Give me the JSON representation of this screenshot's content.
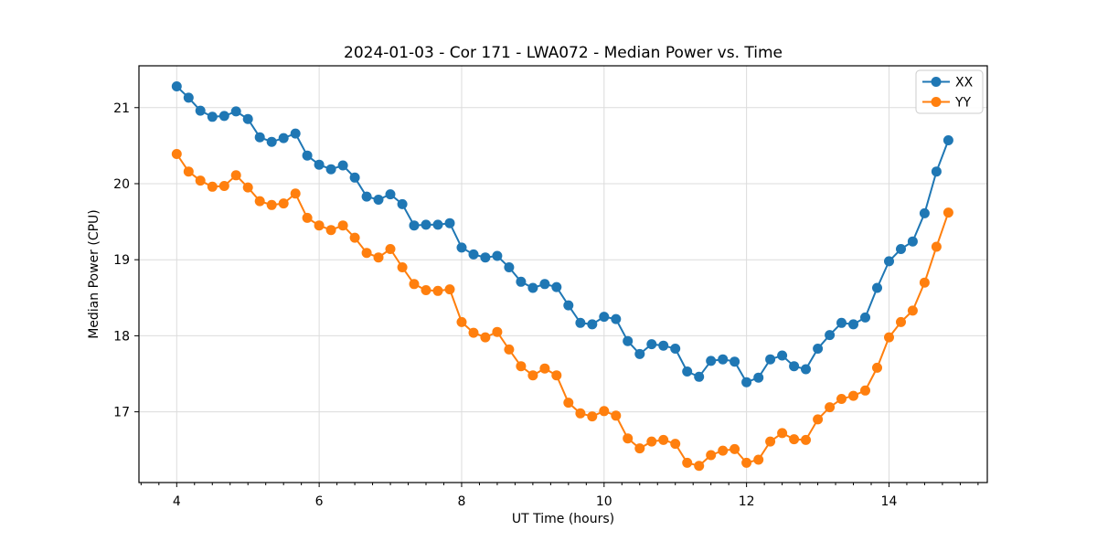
{
  "figure": {
    "background": "#ffffff",
    "plot_background": "#ffffff",
    "spine_color": "#000000",
    "grid_color": "#dcdcdc"
  },
  "chart_data": {
    "type": "line",
    "title": "2024-01-03 - Cor 171 - LWA072 - Median Power vs. Time",
    "xlabel": "UT Time (hours)",
    "ylabel": "Median Power (CPU)",
    "xlim": [
      3.47,
      15.38
    ],
    "ylim": [
      16.07,
      21.55
    ],
    "x_ticks": [
      4,
      6,
      8,
      10,
      12,
      14
    ],
    "x_minor_tick_step": 0.25,
    "y_ticks": [
      17,
      18,
      19,
      20,
      21
    ],
    "grid": true,
    "legend_position": "upper right",
    "marker": "circle",
    "x": [
      4.0,
      4.167,
      4.333,
      4.5,
      4.667,
      4.833,
      5.0,
      5.167,
      5.333,
      5.5,
      5.667,
      5.833,
      6.0,
      6.167,
      6.333,
      6.5,
      6.667,
      6.833,
      7.0,
      7.167,
      7.333,
      7.5,
      7.667,
      7.833,
      8.0,
      8.167,
      8.333,
      8.5,
      8.667,
      8.833,
      9.0,
      9.167,
      9.333,
      9.5,
      9.667,
      9.833,
      10.0,
      10.167,
      10.333,
      10.5,
      10.667,
      10.833,
      11.0,
      11.167,
      11.333,
      11.5,
      11.667,
      11.833,
      12.0,
      12.167,
      12.333,
      12.5,
      12.667,
      12.833,
      13.0,
      13.167,
      13.333,
      13.5,
      13.667,
      13.833,
      14.0,
      14.167,
      14.333,
      14.5,
      14.667,
      14.833
    ],
    "series": [
      {
        "name": "XX",
        "color": "#1f77b4",
        "values": [
          21.28,
          21.13,
          20.96,
          20.88,
          20.89,
          20.95,
          20.85,
          20.61,
          20.55,
          20.6,
          20.66,
          20.37,
          20.25,
          20.19,
          20.24,
          20.08,
          19.83,
          19.79,
          19.86,
          19.73,
          19.45,
          19.46,
          19.46,
          19.48,
          19.16,
          19.07,
          19.03,
          19.05,
          18.9,
          18.71,
          18.63,
          18.68,
          18.64,
          18.4,
          18.17,
          18.15,
          18.25,
          18.22,
          17.93,
          17.76,
          17.89,
          17.87,
          17.83,
          17.53,
          17.46,
          17.67,
          17.69,
          17.66,
          17.39,
          17.45,
          17.69,
          17.74,
          17.6,
          17.56,
          17.83,
          18.01,
          18.17,
          18.15,
          18.24,
          18.63,
          18.98,
          19.14,
          19.24,
          19.61,
          20.16,
          20.57
        ]
      },
      {
        "name": "YY",
        "color": "#ff7f0e",
        "values": [
          20.39,
          20.16,
          20.04,
          19.96,
          19.97,
          20.11,
          19.95,
          19.77,
          19.72,
          19.74,
          19.87,
          19.55,
          19.45,
          19.39,
          19.45,
          19.29,
          19.09,
          19.03,
          19.14,
          18.9,
          18.68,
          18.6,
          18.59,
          18.61,
          18.18,
          18.04,
          17.98,
          18.05,
          17.82,
          17.6,
          17.48,
          17.57,
          17.48,
          17.12,
          16.98,
          16.94,
          17.01,
          16.95,
          16.65,
          16.52,
          16.61,
          16.63,
          16.58,
          16.33,
          16.29,
          16.43,
          16.49,
          16.51,
          16.33,
          16.37,
          16.61,
          16.72,
          16.64,
          16.63,
          16.9,
          17.06,
          17.17,
          17.21,
          17.28,
          17.58,
          17.98,
          18.18,
          18.33,
          18.7,
          19.17,
          19.62
        ]
      }
    ]
  }
}
